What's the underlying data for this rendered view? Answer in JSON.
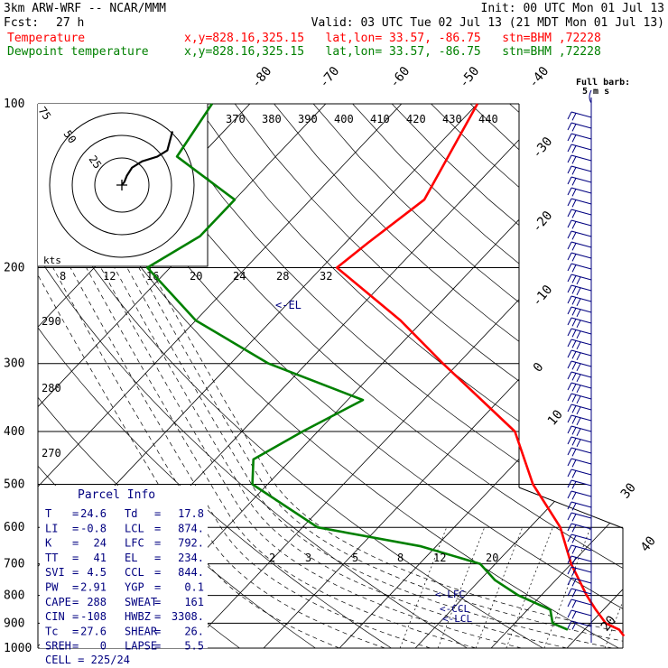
{
  "header": {
    "model": "3km ARW-WRF -- NCAR/MMM",
    "init": "Init: 00 UTC Mon 01 Jul 13",
    "fcst_label": "Fcst:",
    "fcst_value": "27 h",
    "valid": "Valid: 03 UTC Tue 02 Jul 13 (21 MDT Mon 01 Jul 13)",
    "temp_label": "Temperature",
    "temp_info": "x,y=828.16,325.15   lat,lon= 33.57, -86.75   stn=BHM ,72228",
    "dew_label": "Dewpoint temperature",
    "dew_info": "x,y=828.16,325.15   lat,lon= 33.57, -86.75   stn=BHM ,72228",
    "temp_color": "#ff0000",
    "dew_color": "#008000"
  },
  "chart_data": {
    "type": "line",
    "chart_kind": "skew-T log-p sounding",
    "pressure_levels": [
      "100",
      "200",
      "300",
      "400",
      "500",
      "600",
      "700",
      "800",
      "900",
      "1000"
    ],
    "isotherm_labels": [
      "-80",
      "-70",
      "-60",
      "-50",
      "-40",
      "-30",
      "-20",
      "-10",
      "0",
      "10",
      "20",
      "30",
      "40"
    ],
    "theta_labels": [
      "370",
      "380",
      "390",
      "400",
      "410",
      "420",
      "430",
      "440"
    ],
    "theta_low_labels": [
      "290",
      "280",
      "270"
    ],
    "mixing_ratio_labels": [
      "2",
      "3",
      "5",
      "8",
      "12",
      "20"
    ],
    "hodograph": {
      "speed_rings": [
        "75",
        "50",
        "25"
      ],
      "units_label": "kts",
      "axis_labels": [
        "8",
        "12",
        "16",
        "20",
        "24",
        "28",
        "32"
      ],
      "trace": [
        [
          0,
          0
        ],
        [
          1,
          -2
        ],
        [
          2,
          -6
        ],
        [
          4,
          -11
        ],
        [
          8,
          -15
        ],
        [
          14,
          -18
        ],
        [
          18,
          -22
        ],
        [
          19,
          -28
        ],
        [
          20,
          -34
        ]
      ]
    },
    "series": [
      {
        "name": "Temperature",
        "color": "#ff0000",
        "points": [
          [
            100,
            -60
          ],
          [
            150,
            -55
          ],
          [
            180,
            -57
          ],
          [
            200,
            -58
          ],
          [
            250,
            -43
          ],
          [
            300,
            -32
          ],
          [
            400,
            -14
          ],
          [
            500,
            -5
          ],
          [
            600,
            4
          ],
          [
            700,
            10
          ],
          [
            800,
            16
          ],
          [
            850,
            19
          ],
          [
            900,
            22
          ],
          [
            925,
            24.6
          ],
          [
            950,
            26
          ]
        ]
      },
      {
        "name": "Dewpoint temperature",
        "color": "#008000",
        "points": [
          [
            100,
            -95
          ],
          [
            125,
            -93
          ],
          [
            150,
            -80
          ],
          [
            175,
            -80
          ],
          [
            200,
            -83
          ],
          [
            250,
            -70
          ],
          [
            300,
            -55
          ],
          [
            350,
            -38
          ],
          [
            400,
            -42
          ],
          [
            450,
            -45
          ],
          [
            500,
            -42
          ],
          [
            600,
            -28
          ],
          [
            650,
            -12
          ],
          [
            700,
            -2
          ],
          [
            750,
            2
          ],
          [
            800,
            7
          ],
          [
            850,
            13
          ],
          [
            900,
            15
          ],
          [
            925,
            17.8
          ]
        ]
      }
    ],
    "level_markers": [
      "<-EL",
      "<-LFC",
      "<-CCL",
      "<-LCL"
    ],
    "wind_barbs": {
      "legend_title": "Full barb:",
      "legend_units": "5 m s",
      "color": "#000080"
    }
  },
  "parcel_info": {
    "title": "Parcel Info",
    "rows": [
      [
        "T",
        "24.6",
        "Td",
        "17.8"
      ],
      [
        "LI",
        "-0.8",
        "LCL",
        "874."
      ],
      [
        "K",
        "24",
        "LFC",
        "792."
      ],
      [
        "TT",
        "41",
        "EL",
        "234."
      ],
      [
        "SVI",
        "4.5",
        "CCL",
        "844."
      ],
      [
        "PW",
        "2.91",
        "YGP",
        "0.1"
      ],
      [
        "CAPE",
        "288",
        "SWEAT",
        "161"
      ],
      [
        "CIN",
        "-108",
        "HWBZ",
        "3308."
      ],
      [
        "Tc",
        "27.6",
        "SHEAR",
        "26."
      ],
      [
        "SREH",
        "0",
        "LAPSE",
        "5.5"
      ]
    ],
    "cell": "CELL = 225/24"
  }
}
